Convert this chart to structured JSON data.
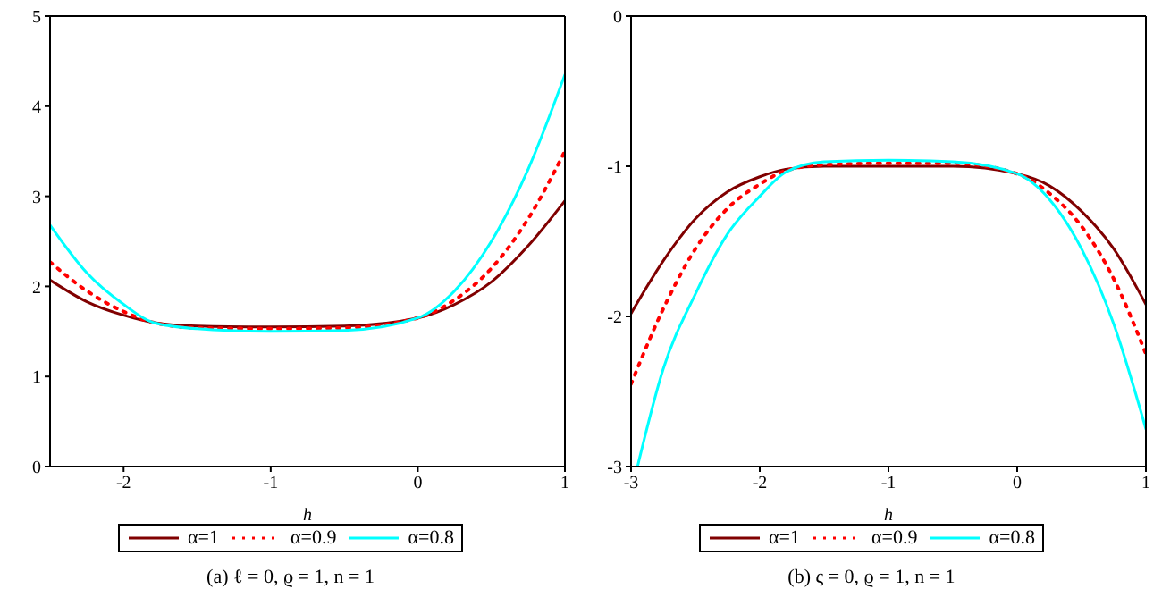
{
  "chart_data": [
    {
      "type": "line",
      "xlabel": "h",
      "xlim": [
        -2.5,
        1
      ],
      "xticks": [
        -2,
        -1,
        0,
        1
      ],
      "ylim": [
        0,
        5
      ],
      "yticks": [
        0,
        1,
        2,
        3,
        4,
        5
      ],
      "legend": "bottom",
      "annotations": [
        "(a) ℓ = 0, ϱ = 1, n = 1"
      ],
      "series": [
        {
          "name": "α=1",
          "color": "#800000",
          "line_style": "solid",
          "x": [
            -2.5,
            -2.25,
            -2,
            -1.8,
            -1.5,
            -1,
            -0.5,
            0,
            0.25,
            0.5,
            0.75,
            1
          ],
          "values": [
            2.07,
            1.83,
            1.68,
            1.6,
            1.56,
            1.55,
            1.56,
            1.65,
            1.8,
            2.05,
            2.45,
            2.95
          ]
        },
        {
          "name": "α=0.9",
          "color": "#ff0000",
          "line_style": "dotted",
          "x": [
            -2.5,
            -2.25,
            -2,
            -1.8,
            -1.5,
            -1,
            -0.5,
            0,
            0.25,
            0.5,
            0.75,
            1
          ],
          "values": [
            2.27,
            1.95,
            1.72,
            1.6,
            1.54,
            1.53,
            1.54,
            1.65,
            1.85,
            2.2,
            2.75,
            3.5
          ]
        },
        {
          "name": "α=0.8",
          "color": "#00ffff",
          "line_style": "solid",
          "x": [
            -2.5,
            -2.25,
            -2,
            -1.8,
            -1.5,
            -1,
            -0.5,
            0,
            0.25,
            0.5,
            0.75,
            1
          ],
          "values": [
            2.68,
            2.15,
            1.8,
            1.6,
            1.53,
            1.5,
            1.51,
            1.65,
            1.95,
            2.5,
            3.3,
            4.35
          ]
        }
      ]
    },
    {
      "type": "line",
      "xlabel": "h",
      "xlim": [
        -3,
        1
      ],
      "xticks": [
        -3,
        -2,
        -1,
        0,
        1
      ],
      "ylim": [
        -3,
        0
      ],
      "yticks": [
        -3,
        -2,
        -1,
        0
      ],
      "legend": "bottom",
      "annotations": [
        "(b) ς = 0, ϱ = 1, n = 1"
      ],
      "series": [
        {
          "name": "α=1",
          "color": "#800000",
          "line_style": "solid",
          "x": [
            -3,
            -2.75,
            -2.5,
            -2.25,
            -2,
            -1.8,
            -1.5,
            -1,
            -0.5,
            0,
            0.25,
            0.5,
            0.75,
            1
          ],
          "values": [
            -1.98,
            -1.63,
            -1.35,
            -1.17,
            -1.07,
            -1.02,
            -1.0,
            -1.0,
            -1.0,
            -1.05,
            -1.13,
            -1.3,
            -1.55,
            -1.92
          ]
        },
        {
          "name": "α=0.9",
          "color": "#ff0000",
          "line_style": "dotted",
          "x": [
            -3,
            -2.75,
            -2.5,
            -2.25,
            -2,
            -1.8,
            -1.5,
            -1,
            -0.5,
            0,
            0.25,
            0.5,
            0.75,
            1
          ],
          "values": [
            -2.45,
            -1.95,
            -1.55,
            -1.28,
            -1.12,
            -1.03,
            -0.99,
            -0.98,
            -0.98,
            -1.05,
            -1.18,
            -1.4,
            -1.75,
            -2.25
          ]
        },
        {
          "name": "α=0.8",
          "color": "#00ffff",
          "line_style": "solid",
          "x": [
            -2.95,
            -2.75,
            -2.5,
            -2.25,
            -2,
            -1.8,
            -1.5,
            -1,
            -0.5,
            0,
            0.25,
            0.5,
            0.75,
            1
          ],
          "values": [
            -3.0,
            -2.35,
            -1.85,
            -1.45,
            -1.2,
            -1.04,
            -0.97,
            -0.96,
            -0.97,
            -1.05,
            -1.22,
            -1.55,
            -2.05,
            -2.75
          ]
        }
      ]
    }
  ]
}
